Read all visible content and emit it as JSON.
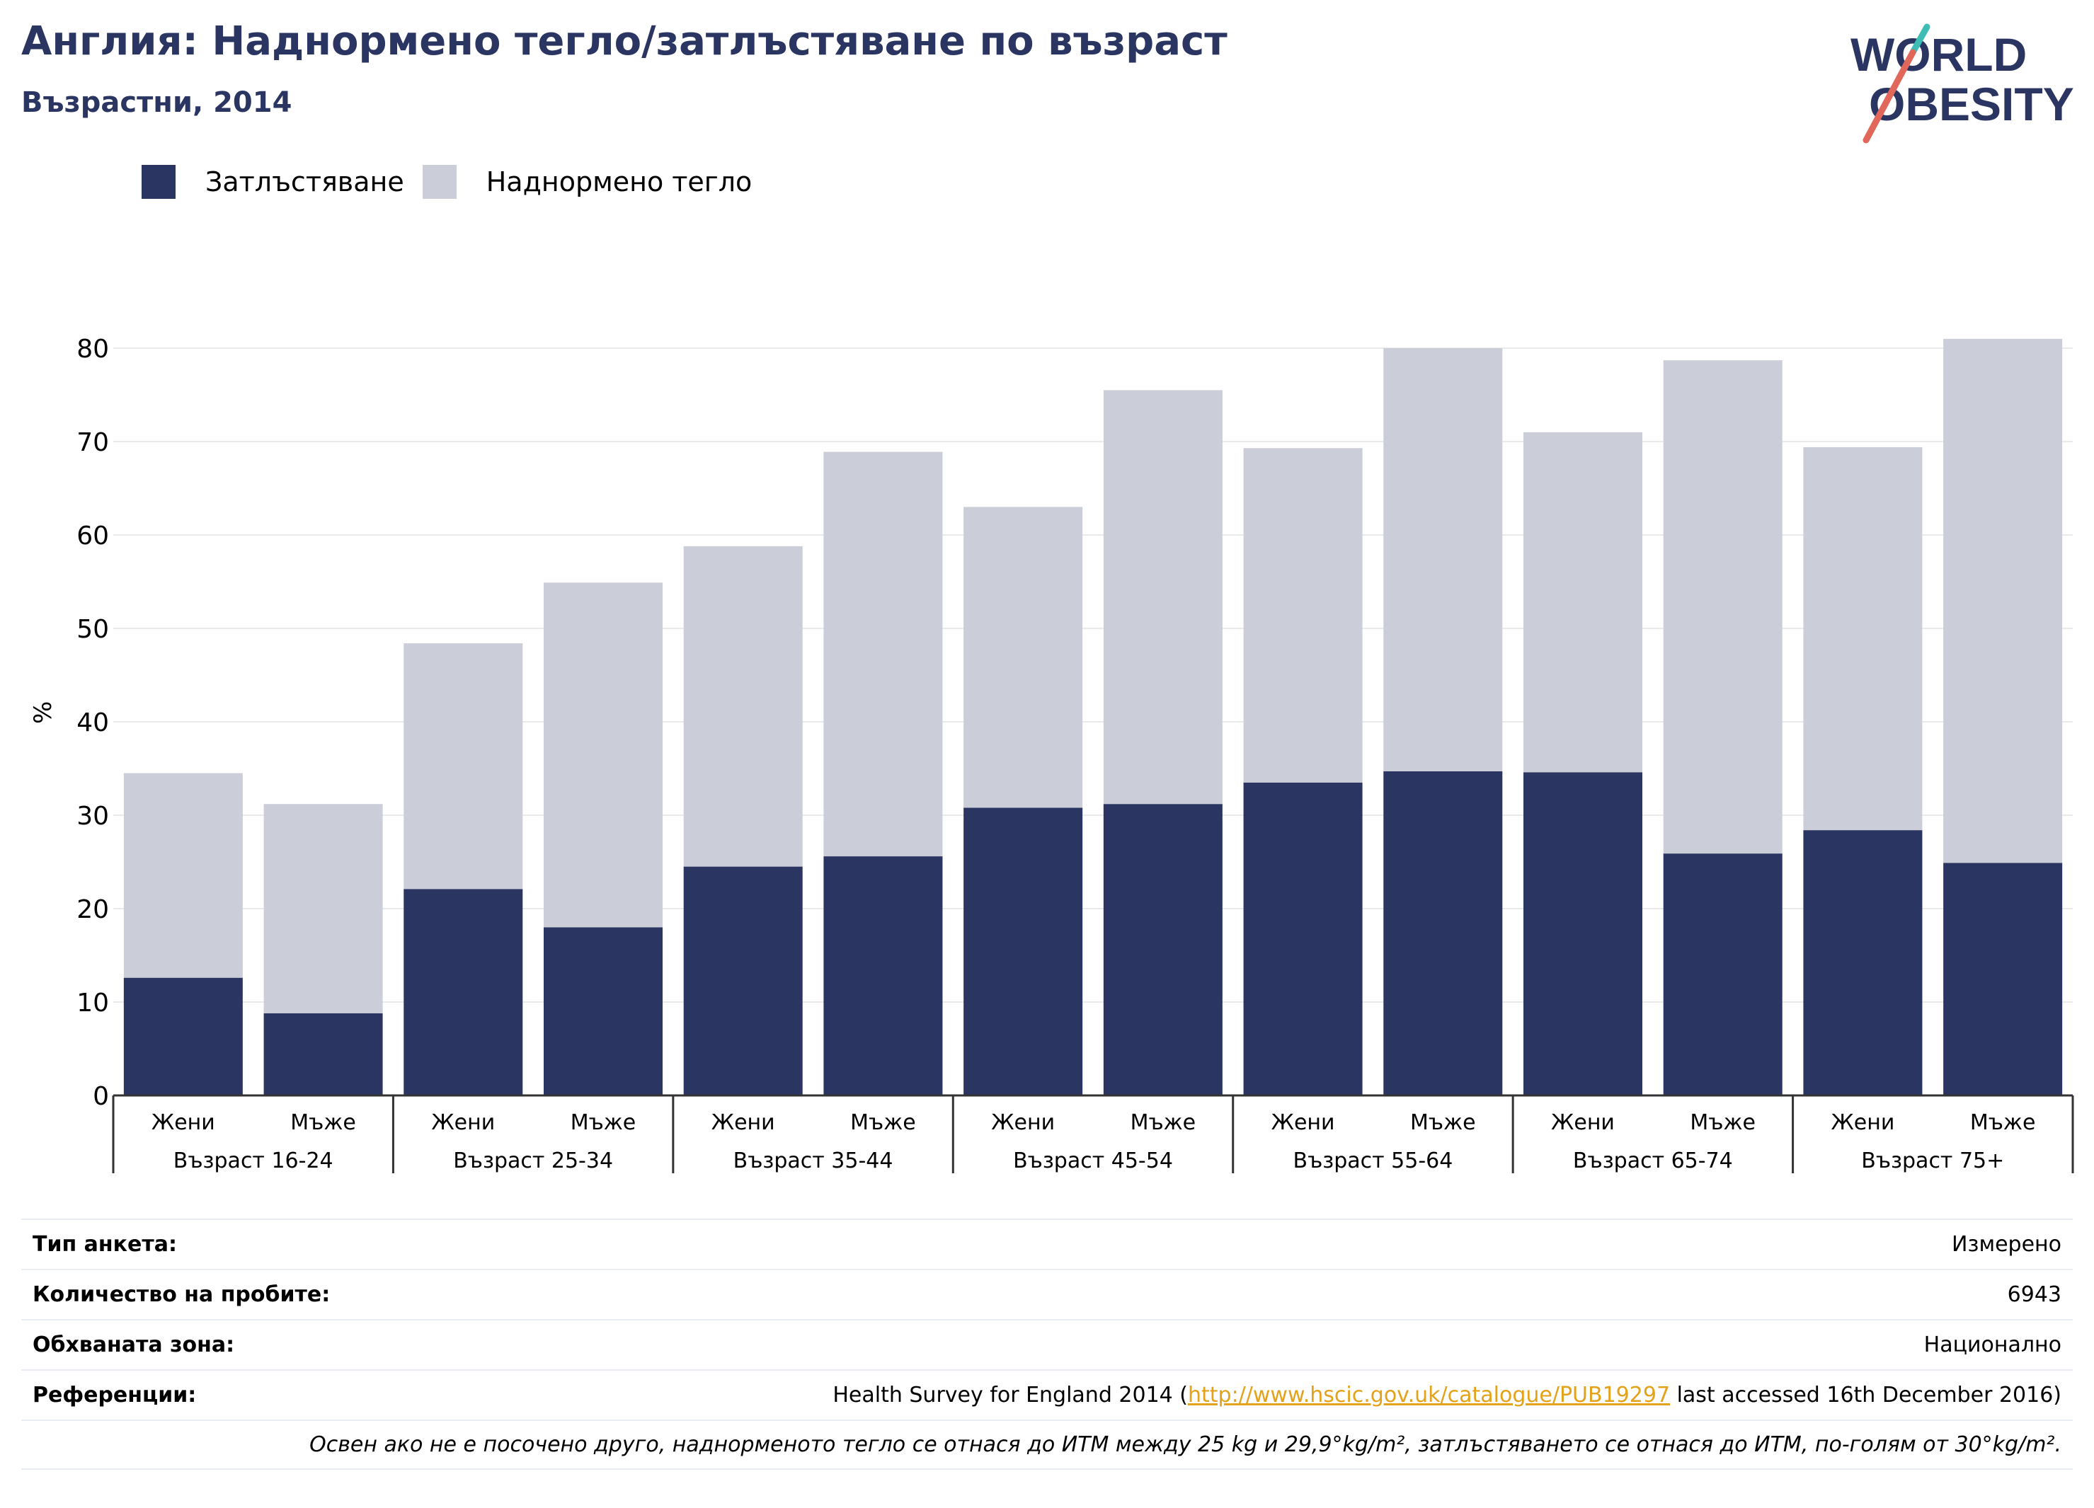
{
  "title": "Англия: Наднормено тегло/затлъстяване по възраст",
  "subtitle": "Възрастни, 2014",
  "logo": {
    "line1": "WORLD",
    "line2": "OBESITY"
  },
  "colors": {
    "obesity": "#2a3561",
    "overweight": "#cbcdd9",
    "title": "#2a3561",
    "link": "#e3a21a",
    "grid": "#e8eaee",
    "axis": "#333333"
  },
  "chart_data": {
    "type": "bar",
    "stacked": true,
    "ylabel": "%",
    "ylim": [
      0,
      82
    ],
    "yticks": [
      0,
      10,
      20,
      30,
      40,
      50,
      60,
      70,
      80
    ],
    "grid": true,
    "legend_position": "top-left",
    "categories": [
      {
        "sex": "Жени",
        "group": "Възраст 16-24"
      },
      {
        "sex": "Мъже",
        "group": "Възраст 16-24"
      },
      {
        "sex": "Жени",
        "group": "Възраст 25-34"
      },
      {
        "sex": "Мъже",
        "group": "Възраст 25-34"
      },
      {
        "sex": "Жени",
        "group": "Възраст 35-44"
      },
      {
        "sex": "Мъже",
        "group": "Възраст 35-44"
      },
      {
        "sex": "Жени",
        "group": "Възраст 45-54"
      },
      {
        "sex": "Мъже",
        "group": "Възраст 45-54"
      },
      {
        "sex": "Жени",
        "group": "Възраст 55-64"
      },
      {
        "sex": "Мъже",
        "group": "Възраст 55-64"
      },
      {
        "sex": "Жени",
        "group": "Възраст 65-74"
      },
      {
        "sex": "Мъже",
        "group": "Възраст 65-74"
      },
      {
        "sex": "Жени",
        "group": "Възраст 75+"
      },
      {
        "sex": "Мъже",
        "group": "Възраст 75+"
      }
    ],
    "groups": [
      "Възраст 16-24",
      "Възраст 25-34",
      "Възраст 35-44",
      "Възраст 45-54",
      "Възраст 55-64",
      "Възраст 65-74",
      "Възраст 75+"
    ],
    "series": [
      {
        "name": "Затлъстяване",
        "values": [
          12.6,
          8.8,
          22.1,
          18.0,
          24.5,
          25.6,
          30.8,
          31.2,
          33.5,
          34.7,
          34.6,
          25.9,
          28.4,
          24.9
        ]
      },
      {
        "name": "Наднормено тегло",
        "values": [
          21.9,
          22.4,
          26.3,
          36.9,
          34.3,
          43.3,
          32.2,
          44.3,
          35.8,
          45.3,
          36.4,
          52.8,
          41.0,
          56.1
        ]
      }
    ]
  },
  "meta": {
    "survey_type_label": "Тип анкета:",
    "survey_type_value": "Измерено",
    "sample_size_label": "Количество на пробите:",
    "sample_size_value": "6943",
    "area_label": "Обхваната зона:",
    "area_value": "Национално",
    "references_label": "Референции:",
    "ref_prefix": "Health Survey for England 2014 (",
    "ref_link": "http://www.hscic.gov.uk/catalogue/PUB19297",
    "ref_suffix": " last accessed 16th December 2016)",
    "note": "Освен ако не е посочено друго, наднорменото тегло се отнася до ИТМ между 25 kg и 29,9°kg/m², затлъстяването се отнася до ИТМ, по-голям от 30°kg/m²."
  }
}
